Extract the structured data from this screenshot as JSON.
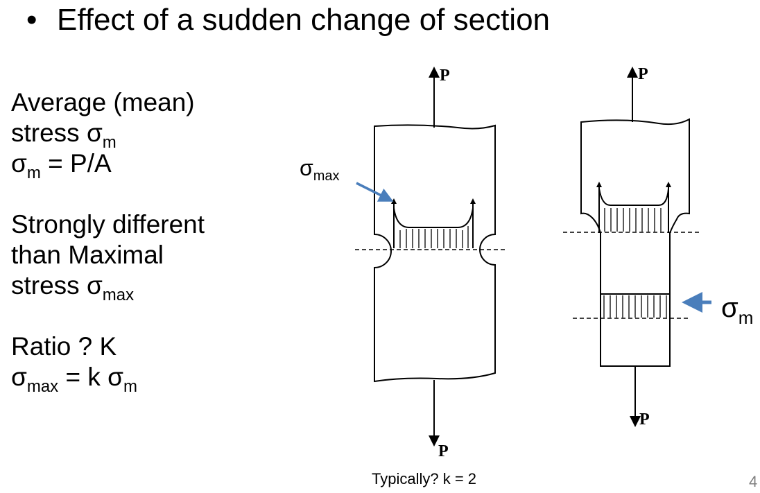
{
  "title": {
    "bullet": "•",
    "text": "Effect of a sudden change of section"
  },
  "left_text": {
    "avg_line1": "Average (mean)",
    "avg_line2": "stress σ",
    "avg_line2_sub": "m",
    "formula_sigma": "σ",
    "formula_sub": "m",
    "formula_rest": " = P/A",
    "diff_line1": "Strongly  different",
    "diff_line2": "than  Maximal",
    "diff_line3": "stress σ",
    "diff_line3_sub": "max",
    "ratio_line": "Ratio     ?    K",
    "k_sigma": "σ",
    "k_sub": "max",
    "k_middle": " =  k  σ",
    "k_sub2": "m"
  },
  "figure": {
    "load_label": "P",
    "sigma_max_label": "σ",
    "sigma_max_sub": "max",
    "sigma_m_label": "σ",
    "sigma_m_sub": "m",
    "arrow_color": "#4a7ebb"
  },
  "caption": "Typically?   k  =  2",
  "page_number": "4"
}
